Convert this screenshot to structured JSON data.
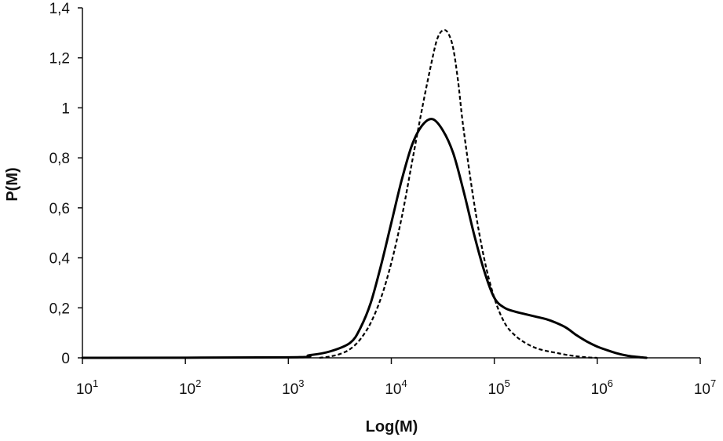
{
  "chart_data": {
    "type": "line",
    "xlabel": "Log(M)",
    "ylabel": "P(M)",
    "x_scale": "log",
    "xlim": [
      10,
      10000000
    ],
    "ylim": [
      0,
      1.4
    ],
    "x_ticks": [
      {
        "base": "10",
        "exp": "1",
        "value": 10
      },
      {
        "base": "10",
        "exp": "2",
        "value": 100
      },
      {
        "base": "10",
        "exp": "3",
        "value": 1000
      },
      {
        "base": "10",
        "exp": "4",
        "value": 10000
      },
      {
        "base": "10",
        "exp": "5",
        "value": 100000
      },
      {
        "base": "10",
        "exp": "6",
        "value": 1000000
      },
      {
        "base": "10",
        "exp": "7",
        "value": 10000000
      }
    ],
    "y_ticks": [
      {
        "label": "0",
        "value": 0
      },
      {
        "label": "0,2",
        "value": 0.2
      },
      {
        "label": "0,4",
        "value": 0.4
      },
      {
        "label": "0,6",
        "value": 0.6
      },
      {
        "label": "0,8",
        "value": 0.8
      },
      {
        "label": "1",
        "value": 1.0
      },
      {
        "label": "1,2",
        "value": 1.2
      },
      {
        "label": "1,4",
        "value": 1.4
      }
    ],
    "legend": "none",
    "grid": false,
    "series": [
      {
        "style": "solid",
        "x": [
          10,
          1000,
          1585,
          2512,
          3981,
          5012,
          6310,
          7943,
          10000,
          12589,
          15849,
          19953,
          25119,
          31623,
          39811,
          50119,
          63096,
          79433,
          100000,
          125893,
          158489,
          199526,
          251189,
          316228,
          398107,
          501187,
          630957,
          794328,
          1000000,
          1258925,
          1584893,
          1995262,
          2511886,
          3000000
        ],
        "y": [
          0,
          0.002,
          0.01,
          0.025,
          0.06,
          0.12,
          0.22,
          0.37,
          0.54,
          0.71,
          0.85,
          0.93,
          0.955,
          0.91,
          0.82,
          0.67,
          0.5,
          0.35,
          0.24,
          0.2,
          0.185,
          0.175,
          0.165,
          0.155,
          0.14,
          0.12,
          0.09,
          0.065,
          0.045,
          0.03,
          0.017,
          0.008,
          0.003,
          0.0
        ]
      },
      {
        "style": "dotted",
        "x": [
          2000,
          2512,
          3162,
          3981,
          5012,
          6310,
          7943,
          10000,
          12589,
          15849,
          19953,
          25119,
          28184,
          31623,
          35481,
          39811,
          44668,
          50119,
          63096,
          79433,
          100000,
          125893,
          158489,
          199526,
          251189,
          316228,
          398107,
          501187,
          630957,
          794328,
          1000000
        ],
        "y": [
          0,
          0.005,
          0.015,
          0.035,
          0.075,
          0.14,
          0.24,
          0.38,
          0.56,
          0.78,
          1.0,
          1.2,
          1.28,
          1.31,
          1.3,
          1.24,
          1.1,
          0.92,
          0.63,
          0.4,
          0.24,
          0.14,
          0.09,
          0.06,
          0.04,
          0.028,
          0.02,
          0.012,
          0.006,
          0.002,
          0.0
        ]
      }
    ]
  }
}
